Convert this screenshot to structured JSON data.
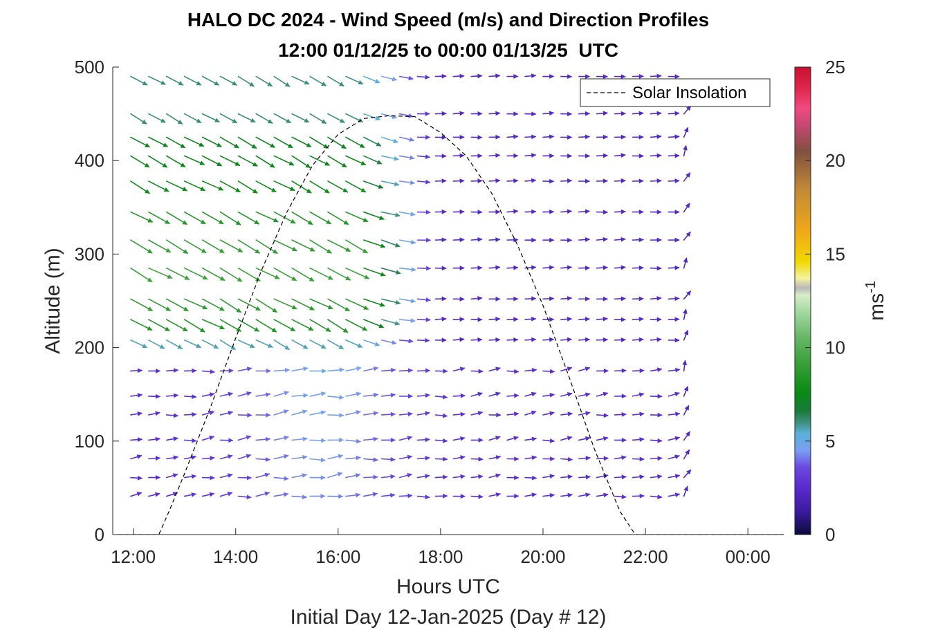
{
  "chart_data": {
    "type": "quiver",
    "title": "HALO DC 2024 - Wind Speed (m/s) and Direction Profiles",
    "subtitle": "12:00 01/12/25 to 00:00 01/13/25  UTC",
    "xlabel": "Hours UTC",
    "xlabel2": "Initial Day 12-Jan-2025 (Day # 12)",
    "ylabel": "Altitude (m)",
    "xlim": [
      11.6,
      24.7
    ],
    "ylim": [
      0,
      500
    ],
    "x_tick_values": [
      12,
      14,
      16,
      18,
      20,
      22,
      24
    ],
    "x_tick_labels": [
      "12:00",
      "14:00",
      "16:00",
      "18:00",
      "20:00",
      "22:00",
      "00:00"
    ],
    "y_ticks": [
      0,
      100,
      200,
      300,
      400,
      500
    ],
    "colorbar": {
      "label": "ms",
      "label_superscript": "-1",
      "range": [
        0,
        25
      ],
      "ticks": [
        0,
        5,
        10,
        15,
        20,
        25
      ],
      "stops": [
        [
          0,
          "#0a0a3c"
        ],
        [
          1.2,
          "#3a1a9c"
        ],
        [
          2.5,
          "#5a2acf"
        ],
        [
          3.6,
          "#6a4ae0"
        ],
        [
          4.5,
          "#7a9ef0"
        ],
        [
          5.4,
          "#5ab0d8"
        ],
        [
          6.0,
          "#3f8f7f"
        ],
        [
          6.6,
          "#1a7a3a"
        ],
        [
          7.6,
          "#0a8a14"
        ],
        [
          9.2,
          "#3aa03a"
        ],
        [
          10.6,
          "#6ab86a"
        ],
        [
          11.9,
          "#a2d8a0"
        ],
        [
          12.8,
          "#d8ecc8"
        ],
        [
          13.2,
          "#b8b8b8"
        ],
        [
          13.7,
          "#f4f2a0"
        ],
        [
          14.6,
          "#f0d800"
        ],
        [
          16.2,
          "#f0a818"
        ],
        [
          18.5,
          "#c08838"
        ],
        [
          20.5,
          "#805040"
        ],
        [
          21.8,
          "#c04870"
        ],
        [
          22.8,
          "#f04a80"
        ],
        [
          23.8,
          "#e02850"
        ],
        [
          25,
          "#c8102e"
        ]
      ]
    },
    "legend": {
      "label": "Solar Insolation",
      "location": "top-right"
    },
    "solar_insolation": {
      "style": "dashed",
      "x": [
        11.7,
        12.5,
        12.7,
        13.0,
        13.5,
        14.0,
        14.5,
        15.0,
        15.5,
        16.0,
        16.5,
        17.0,
        17.5,
        18.0,
        18.5,
        19.0,
        19.5,
        20.0,
        20.5,
        21.0,
        21.5,
        21.8,
        22.5,
        23.5,
        24.7
      ],
      "y": [
        0,
        0,
        25,
        65,
        135,
        210,
        282,
        345,
        395,
        428,
        445,
        448,
        447,
        430,
        405,
        365,
        310,
        245,
        170,
        92,
        25,
        0,
        0,
        0,
        0
      ]
    },
    "altitudes": [
      41,
      61,
      81,
      101,
      128,
      148,
      175,
      208,
      230,
      252,
      285,
      315,
      345,
      378,
      405,
      425,
      450,
      490
    ],
    "times": [
      11.95,
      12.3,
      12.65,
      13.0,
      13.35,
      13.7,
      14.05,
      14.4,
      14.75,
      15.1,
      15.45,
      15.8,
      16.15,
      16.5,
      16.85,
      17.2,
      17.55,
      17.9,
      18.25,
      18.6,
      18.95,
      19.3,
      19.65,
      20.0,
      20.35,
      20.7,
      21.05,
      21.4,
      21.75,
      22.1,
      22.45,
      22.75
    ],
    "wind_field_summary": {
      "levels_below_200m": "westerly winds about 2-4 m/s across the period",
      "levels_200_to_500m_before_17h": "northwesterly winds about 5-11 m/s",
      "levels_above_200m_after_17h": "westerly winds about 2-3 m/s"
    }
  }
}
